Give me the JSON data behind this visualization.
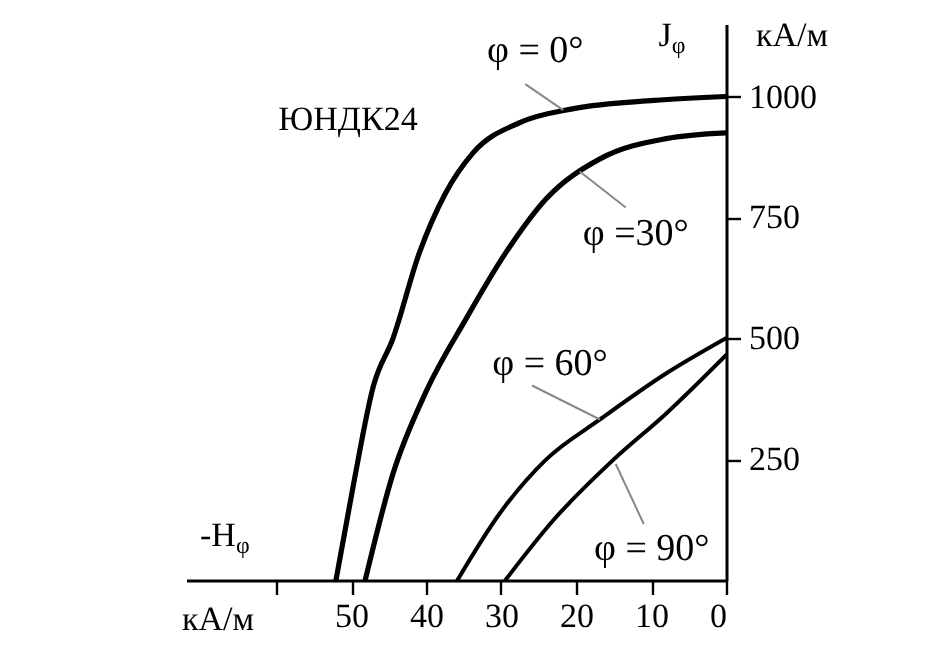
{
  "chart_data": {
    "type": "line",
    "xlabel": "-H$_{φ}$",
    "ylabel": "J$_{φ}$",
    "xlim": [
      72,
      0
    ],
    "ylim": [
      0,
      1150
    ],
    "xticks": [
      {
        "value": 60,
        "label": null
      },
      50,
      40,
      30,
      20,
      10,
      0
    ],
    "yticks": [
      250,
      500,
      750,
      1000
    ],
    "marker": "none",
    "line_style": "solid",
    "series": [
      {
        "color": "#000000",
        "x": [
          52,
          49.7,
          47,
          44.4,
          40.9,
          37.4,
          33.7,
          27.5,
          20.3,
          9.6,
          0
        ],
        "values": [
          0,
          195,
          402,
          500,
          676,
          800,
          884,
          946,
          975,
          992,
          1000
        ]
      },
      {
        "color": "#000000",
        "x": [
          48.1,
          44.4,
          40.1,
          34.7,
          29.4,
          24,
          16.8,
          8,
          0
        ],
        "values": [
          0,
          220,
          386,
          539,
          676,
          788,
          871,
          913,
          925
        ]
      },
      {
        "color": "#000000",
        "x": [
          35.8,
          30.2,
          24,
          16.8,
          8,
          0
        ],
        "values": [
          0,
          137,
          249,
          332,
          427,
          500
        ]
      },
      {
        "color": "#000000",
        "x": [
          29.4,
          23,
          15,
          8,
          0
        ],
        "values": [
          0,
          124,
          249,
          344,
          465
        ]
      }
    ],
    "annotations": [
      "ЮНДК24",
      "кА/м",
      "кА/м",
      {
        "text": "φ = 0°",
        "x": 21.7,
        "y": 972
      },
      {
        "text": "φ =30°",
        "x": 19.5,
        "y": 845
      },
      {
        "text": "φ = 60°",
        "x": 16.8,
        "y": 332
      },
      {
        "text": "φ = 90°",
        "x": 14.7,
        "y": 240
      }
    ]
  }
}
